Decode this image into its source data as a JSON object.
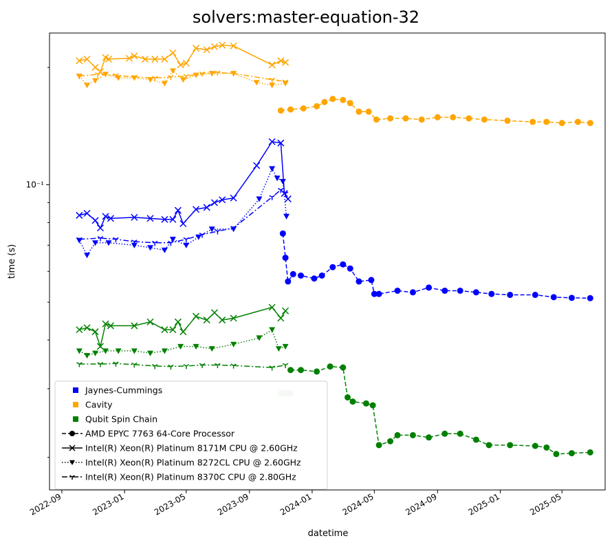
{
  "chart_data": {
    "type": "line",
    "title": "solvers:master-equation-32",
    "xlabel": "datetime",
    "ylabel": "time (s)",
    "y_scale": "log",
    "x_range": [
      "2022-08-08",
      "2025-07-24"
    ],
    "ylim": [
      0.0165,
      0.245
    ],
    "x_ticks": [
      "2022-09",
      "2023-01",
      "2023-05",
      "2023-09",
      "2024-01",
      "2024-05",
      "2024-09",
      "2025-01",
      "2025-05"
    ],
    "y_ticks": [
      {
        "value": 0.1,
        "label": "10⁻¹"
      }
    ],
    "grid": false,
    "legend_position": "lower-left",
    "colors": {
      "Jaynes-Cummings": "#0000ff",
      "Cavity": "#ffa500",
      "Qubit Spin Chain": "#008000"
    },
    "legend": {
      "problems": [
        {
          "label": "Jaynes-Cummings",
          "color": "#0000ff"
        },
        {
          "label": "Cavity",
          "color": "#ffa500"
        },
        {
          "label": "Qubit Spin Chain",
          "color": "#008000"
        }
      ],
      "processors": [
        {
          "label": "AMD EPYC 7763 64-Core Processor",
          "marker": "circle",
          "dash": "dashed"
        },
        {
          "label": "Intel(R) Xeon(R) Platinum 8171M CPU @ 2.60GHz",
          "marker": "x",
          "dash": "solid"
        },
        {
          "label": "Intel(R) Xeon(R) Platinum 8272CL CPU @ 2.60GHz",
          "marker": "triangle-down",
          "dash": "dotted"
        },
        {
          "label": "Intel(R) Xeon(R) Platinum 8370C CPU @ 2.80GHz",
          "marker": "tri-down",
          "dash": "dashdot"
        }
      ]
    },
    "series": [
      {
        "problem": "Cavity",
        "processor": "Intel(R) Xeon(R) Platinum 8171M CPU @ 2.60GHz",
        "marker": "x",
        "dash": "solid",
        "color": "#ffa500",
        "x": [
          "2022-10-05",
          "2022-10-20",
          "2022-11-05",
          "2022-11-15",
          "2022-11-25",
          "2022-12-01",
          "2023-01-10",
          "2023-01-20",
          "2023-02-10",
          "2023-03-01",
          "2023-03-20",
          "2023-04-05",
          "2023-04-20",
          "2023-05-01",
          "2023-05-20",
          "2023-06-10",
          "2023-06-25",
          "2023-07-10",
          "2023-08-01",
          "2023-10-15",
          "2023-11-01",
          "2023-11-10"
        ],
        "y": [
          0.208,
          0.21,
          0.2,
          0.195,
          0.212,
          0.21,
          0.211,
          0.214,
          0.21,
          0.21,
          0.21,
          0.218,
          0.203,
          0.205,
          0.224,
          0.222,
          0.226,
          0.228,
          0.227,
          0.203,
          0.208,
          0.206
        ]
      },
      {
        "problem": "Cavity",
        "processor": "Intel(R) Xeon(R) Platinum 8272CL CPU @ 2.60GHz",
        "marker": "triangle-down",
        "dash": "dotted",
        "color": "#ffa500",
        "x": [
          "2022-10-05",
          "2022-10-20",
          "2022-11-05",
          "2022-11-25",
          "2022-12-20",
          "2023-01-20",
          "2023-02-20",
          "2023-03-20",
          "2023-04-05",
          "2023-04-25",
          "2023-05-20",
          "2023-06-20",
          "2023-08-01",
          "2023-09-15",
          "2023-10-15",
          "2023-11-10"
        ],
        "y": [
          0.19,
          0.18,
          0.185,
          0.192,
          0.188,
          0.188,
          0.186,
          0.182,
          0.196,
          0.186,
          0.191,
          0.193,
          0.193,
          0.183,
          0.18,
          0.182
        ]
      },
      {
        "problem": "Cavity",
        "processor": "Intel(R) Xeon(R) Platinum 8370C CPU @ 2.80GHz",
        "marker": "tri-down",
        "dash": "dashdot",
        "color": "#ffa500",
        "x": [
          "2022-10-05",
          "2022-11-10",
          "2022-12-15",
          "2023-01-20",
          "2023-03-01",
          "2023-04-01",
          "2023-05-01",
          "2023-06-01",
          "2023-07-01",
          "2023-08-01",
          "2023-10-15",
          "2023-11-10"
        ],
        "y": [
          0.19,
          0.192,
          0.191,
          0.189,
          0.188,
          0.189,
          0.19,
          0.193,
          0.194,
          0.193,
          0.186,
          0.184
        ]
      },
      {
        "problem": "Cavity",
        "processor": "AMD EPYC 7763 64-Core Processor",
        "marker": "circle",
        "dash": "dashed",
        "color": "#ffa500",
        "x": [
          "2023-11-01",
          "2023-11-20",
          "2023-12-15",
          "2024-01-10",
          "2024-01-25",
          "2024-02-10",
          "2024-03-01",
          "2024-03-15",
          "2024-04-01",
          "2024-04-20",
          "2024-05-05",
          "2024-06-01",
          "2024-07-01",
          "2024-08-01",
          "2024-09-01",
          "2024-10-01",
          "2024-11-01",
          "2024-12-01",
          "2025-01-15",
          "2025-03-05",
          "2025-04-01",
          "2025-05-01",
          "2025-06-01",
          "2025-06-25"
        ],
        "y": [
          0.155,
          0.156,
          0.157,
          0.159,
          0.163,
          0.166,
          0.165,
          0.162,
          0.154,
          0.154,
          0.147,
          0.148,
          0.148,
          0.147,
          0.149,
          0.149,
          0.148,
          0.147,
          0.146,
          0.145,
          0.145,
          0.144,
          0.145,
          0.144
        ]
      },
      {
        "problem": "Jaynes-Cummings",
        "processor": "Intel(R) Xeon(R) Platinum 8171M CPU @ 2.60GHz",
        "marker": "x",
        "dash": "solid",
        "color": "#0000ff",
        "x": [
          "2022-10-05",
          "2022-10-20",
          "2022-11-05",
          "2022-11-15",
          "2022-11-25",
          "2022-12-05",
          "2023-01-20",
          "2023-02-20",
          "2023-03-20",
          "2023-04-05",
          "2023-04-15",
          "2023-04-25",
          "2023-05-20",
          "2023-06-10",
          "2023-06-25",
          "2023-07-10",
          "2023-08-01",
          "2023-09-15",
          "2023-10-15",
          "2023-11-01",
          "2023-11-08",
          "2023-11-15"
        ],
        "y": [
          0.0835,
          0.0845,
          0.081,
          0.0775,
          0.083,
          0.082,
          0.0825,
          0.082,
          0.0815,
          0.0815,
          0.086,
          0.0795,
          0.0865,
          0.0875,
          0.09,
          0.0915,
          0.0925,
          0.112,
          0.129,
          0.128,
          0.095,
          0.092
        ]
      },
      {
        "problem": "Jaynes-Cummings",
        "processor": "Intel(R) Xeon(R) Platinum 8272CL CPU @ 2.60GHz",
        "marker": "triangle-down",
        "dash": "dotted",
        "color": "#0000ff",
        "x": [
          "2022-10-05",
          "2022-10-20",
          "2022-11-05",
          "2022-12-01",
          "2023-01-20",
          "2023-02-20",
          "2023-03-20",
          "2023-04-05",
          "2023-05-01",
          "2023-05-25",
          "2023-06-20",
          "2023-08-01",
          "2023-09-20",
          "2023-10-15",
          "2023-10-25",
          "2023-11-05",
          "2023-11-12"
        ],
        "y": [
          0.072,
          0.066,
          0.071,
          0.071,
          0.07,
          0.069,
          0.068,
          0.0725,
          0.07,
          0.0735,
          0.077,
          0.077,
          0.092,
          0.11,
          0.104,
          0.102,
          0.083
        ]
      },
      {
        "problem": "Jaynes-Cummings",
        "processor": "Intel(R) Xeon(R) Platinum 8370C CPU @ 2.80GHz",
        "marker": "tri-down",
        "dash": "dashdot",
        "color": "#0000ff",
        "x": [
          "2022-10-05",
          "2022-11-15",
          "2022-12-15",
          "2023-01-20",
          "2023-03-01",
          "2023-04-01",
          "2023-05-01",
          "2023-06-01",
          "2023-07-01",
          "2023-08-01",
          "2023-10-15",
          "2023-11-01",
          "2023-11-10"
        ],
        "y": [
          0.0725,
          0.073,
          0.0725,
          0.0715,
          0.071,
          0.071,
          0.0725,
          0.0745,
          0.076,
          0.0775,
          0.093,
          0.097,
          0.095
        ]
      },
      {
        "problem": "Jaynes-Cummings",
        "processor": "AMD EPYC 7763 64-Core Processor",
        "marker": "circle",
        "dash": "dashed",
        "color": "#0000ff",
        "x": [
          "2023-11-05",
          "2023-11-10",
          "2023-11-15",
          "2023-11-25",
          "2023-12-10",
          "2024-01-05",
          "2024-01-20",
          "2024-02-10",
          "2024-03-01",
          "2024-03-15",
          "2024-04-01",
          "2024-04-25",
          "2024-05-01",
          "2024-05-10",
          "2024-06-15",
          "2024-07-15",
          "2024-08-15",
          "2024-09-15",
          "2024-10-15",
          "2024-11-15",
          "2024-12-15",
          "2025-01-20",
          "2025-03-10",
          "2025-04-15",
          "2025-05-20",
          "2025-06-25"
        ],
        "y": [
          0.075,
          0.065,
          0.0565,
          0.059,
          0.0585,
          0.0575,
          0.0585,
          0.0615,
          0.0625,
          0.061,
          0.0565,
          0.057,
          0.0525,
          0.0525,
          0.0535,
          0.053,
          0.0545,
          0.0535,
          0.0535,
          0.053,
          0.0525,
          0.0522,
          0.0522,
          0.0515,
          0.0513,
          0.0512
        ]
      },
      {
        "problem": "Qubit Spin Chain",
        "processor": "Intel(R) Xeon(R) Platinum 8171M CPU @ 2.60GHz",
        "marker": "x",
        "dash": "solid",
        "color": "#008000",
        "x": [
          "2022-10-05",
          "2022-10-20",
          "2022-11-05",
          "2022-11-15",
          "2022-11-25",
          "2022-12-05",
          "2023-01-20",
          "2023-02-20",
          "2023-03-20",
          "2023-04-05",
          "2023-04-15",
          "2023-04-25",
          "2023-05-20",
          "2023-06-10",
          "2023-06-25",
          "2023-07-10",
          "2023-08-01",
          "2023-10-15",
          "2023-11-01",
          "2023-11-10"
        ],
        "y": [
          0.0425,
          0.043,
          0.042,
          0.0385,
          0.044,
          0.0435,
          0.0435,
          0.0445,
          0.0425,
          0.0425,
          0.0445,
          0.042,
          0.046,
          0.045,
          0.047,
          0.045,
          0.0455,
          0.0485,
          0.0455,
          0.0475
        ]
      },
      {
        "problem": "Qubit Spin Chain",
        "processor": "Intel(R) Xeon(R) Platinum 8272CL CPU @ 2.60GHz",
        "marker": "triangle-down",
        "dash": "dotted",
        "color": "#008000",
        "x": [
          "2022-10-05",
          "2022-10-20",
          "2022-11-05",
          "2022-11-25",
          "2022-12-20",
          "2023-01-20",
          "2023-02-20",
          "2023-03-20",
          "2023-04-20",
          "2023-05-20",
          "2023-06-20",
          "2023-08-01",
          "2023-09-20",
          "2023-10-15",
          "2023-10-28",
          "2023-11-10"
        ],
        "y": [
          0.0375,
          0.0365,
          0.037,
          0.0375,
          0.0375,
          0.0375,
          0.037,
          0.0375,
          0.0385,
          0.0385,
          0.038,
          0.039,
          0.0405,
          0.0425,
          0.038,
          0.0385
        ]
      },
      {
        "problem": "Qubit Spin Chain",
        "processor": "Intel(R) Xeon(R) Platinum 8370C CPU @ 2.80GHz",
        "marker": "tri-down",
        "dash": "dashdot",
        "color": "#008000",
        "x": [
          "2022-10-05",
          "2022-11-15",
          "2022-12-15",
          "2023-01-20",
          "2023-03-01",
          "2023-04-01",
          "2023-05-01",
          "2023-06-01",
          "2023-07-01",
          "2023-08-01",
          "2023-10-15",
          "2023-11-10"
        ],
        "y": [
          0.0347,
          0.0347,
          0.0348,
          0.0346,
          0.0343,
          0.0342,
          0.0343,
          0.0345,
          0.0345,
          0.0344,
          0.034,
          0.0345
        ]
      },
      {
        "problem": "Qubit Spin Chain",
        "processor": "AMD EPYC 7763 64-Core Processor",
        "marker": "circle",
        "dash": "dashed",
        "color": "#008000",
        "x": [
          "2023-11-20",
          "2023-12-10",
          "2024-01-10",
          "2024-02-05",
          "2024-03-01",
          "2024-03-10",
          "2024-03-20",
          "2024-04-15",
          "2024-04-28",
          "2024-05-10",
          "2024-06-01",
          "2024-06-15",
          "2024-07-15",
          "2024-08-15",
          "2024-09-15",
          "2024-10-15",
          "2024-11-15",
          "2024-12-10",
          "2025-01-20",
          "2025-03-10",
          "2025-04-01",
          "2025-04-20",
          "2025-05-20",
          "2025-06-25"
        ],
        "y": [
          0.0335,
          0.0335,
          0.0332,
          0.0342,
          0.034,
          0.0285,
          0.0278,
          0.0275,
          0.0272,
          0.0215,
          0.022,
          0.0228,
          0.0228,
          0.0225,
          0.023,
          0.023,
          0.0222,
          0.0215,
          0.0215,
          0.0214,
          0.0212,
          0.0204,
          0.0205,
          0.0206
        ]
      }
    ],
    "annotations": [
      {
        "series": "Qubit Spin Chain (faded)",
        "x": "2023-11-10",
        "y": 0.0292
      }
    ]
  }
}
